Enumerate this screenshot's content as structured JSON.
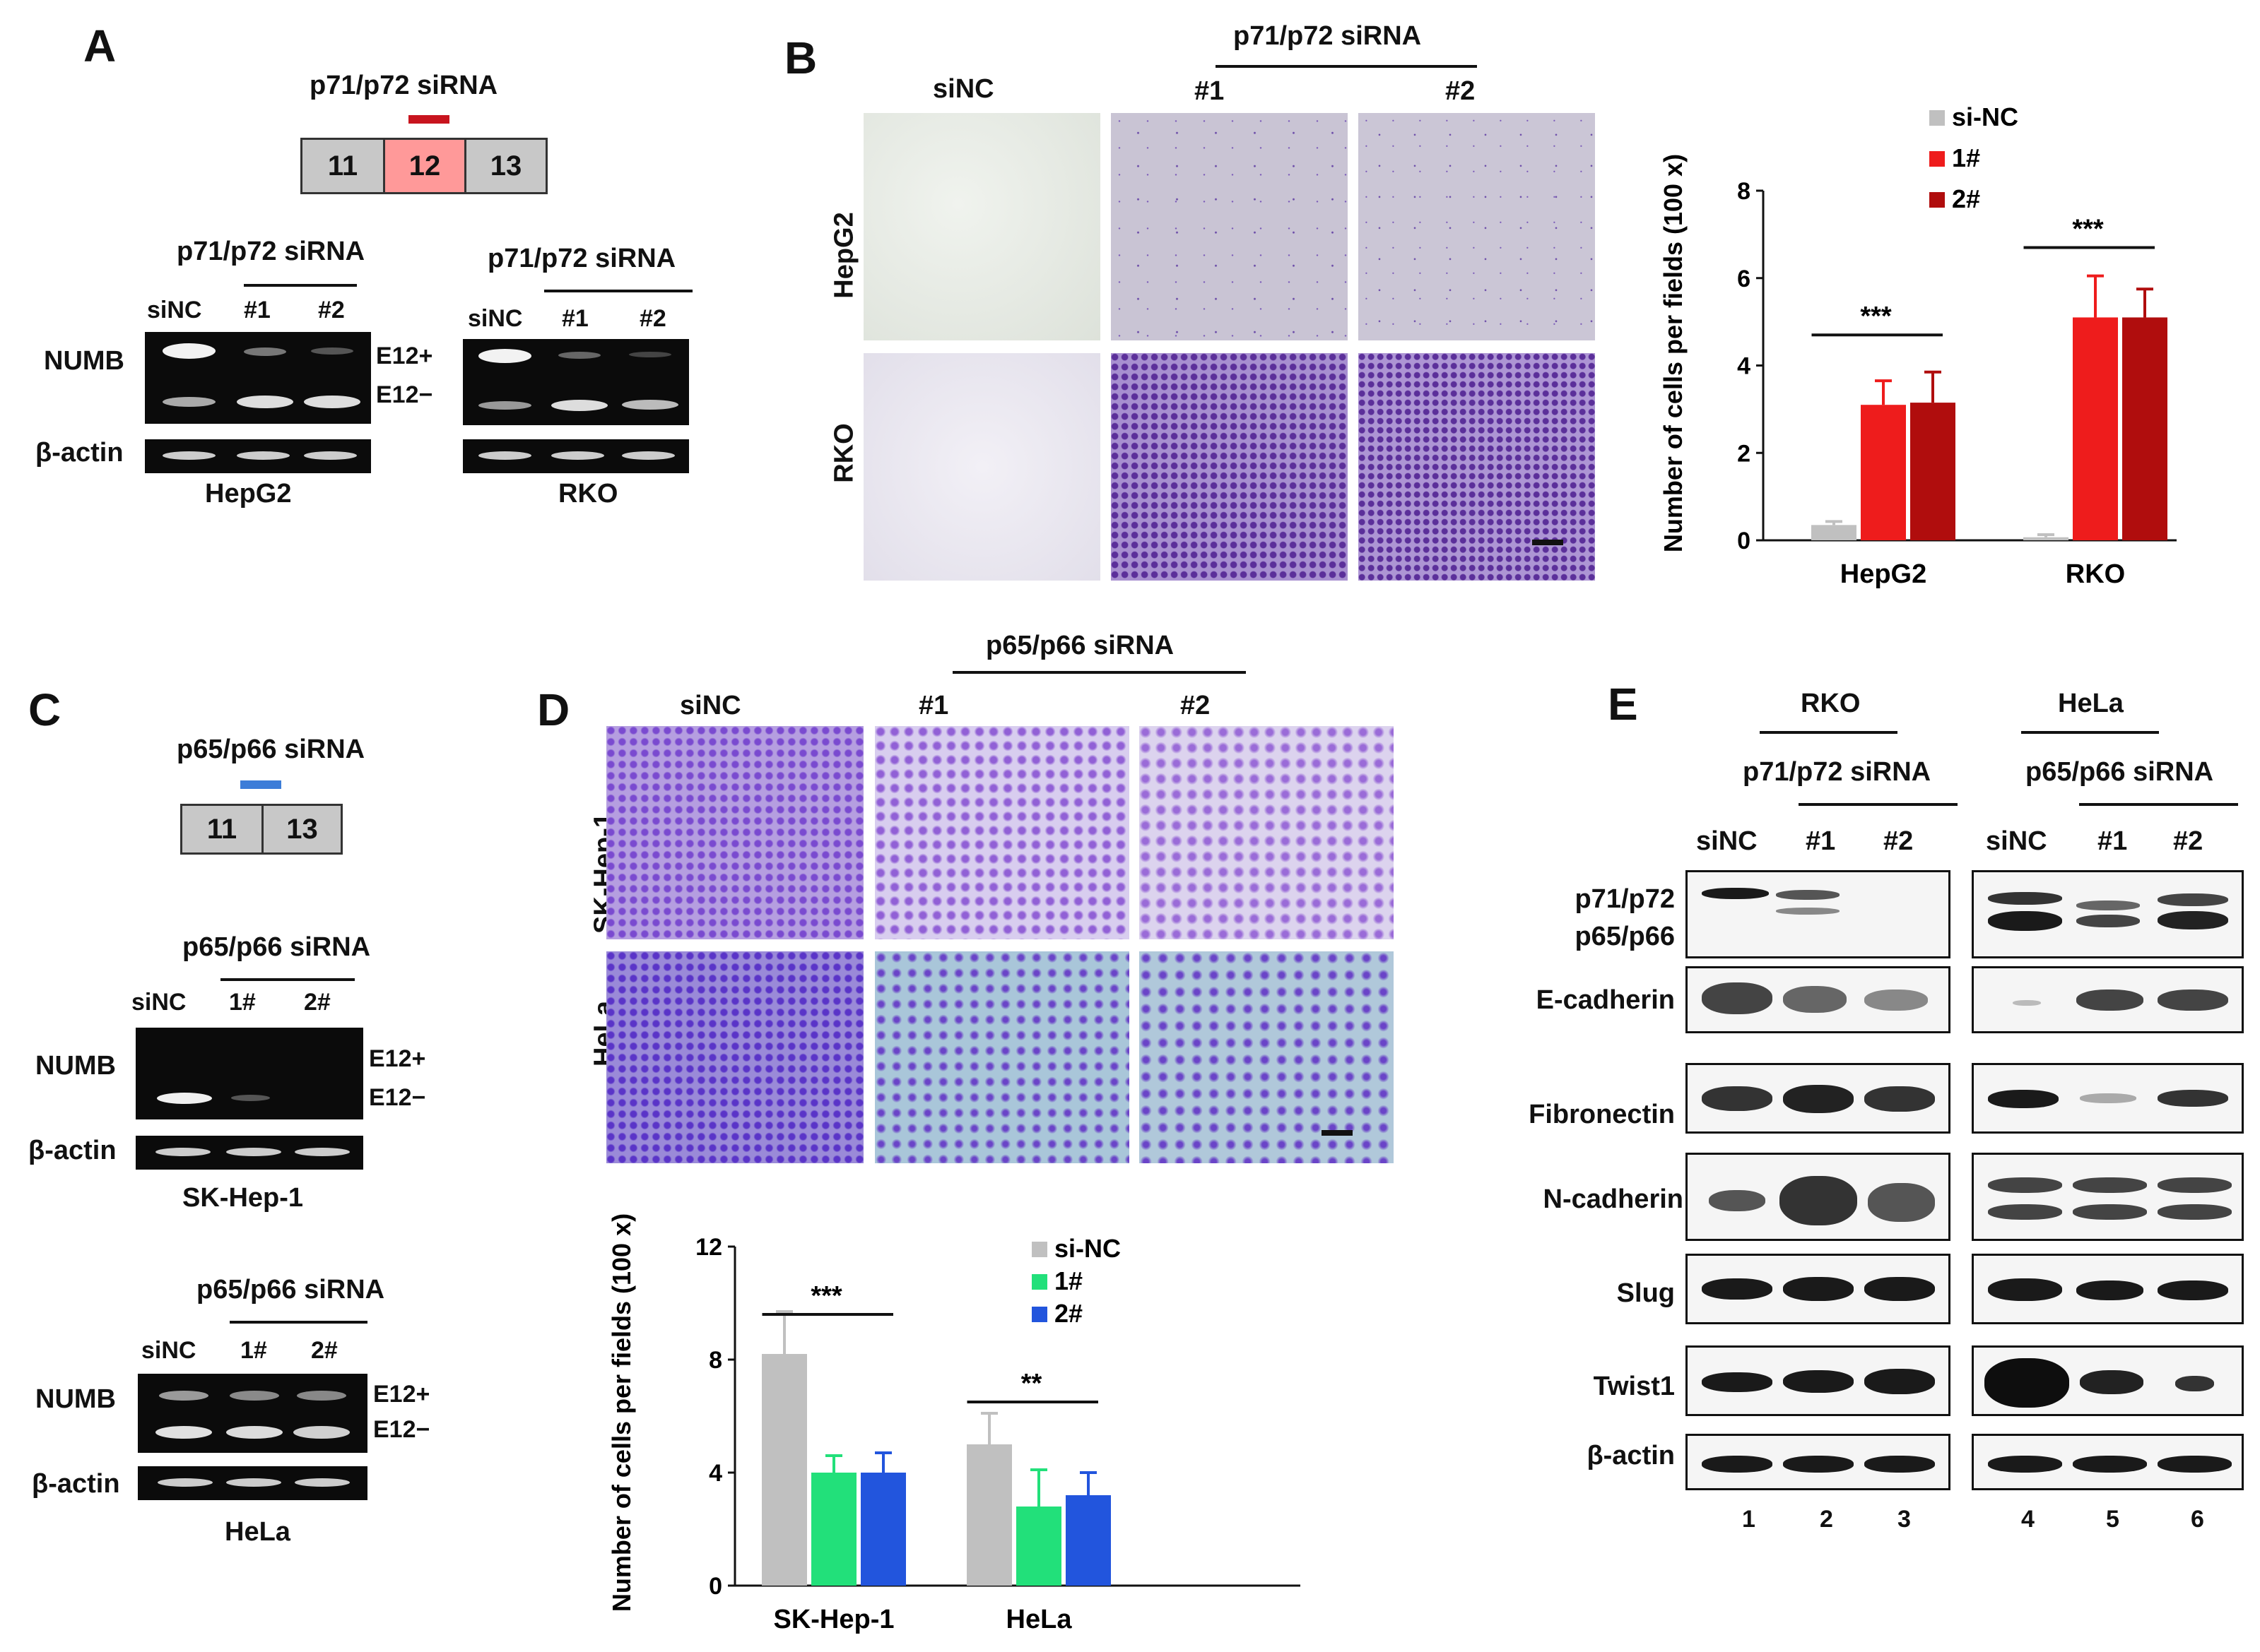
{
  "panels": {
    "A": "A",
    "B": "B",
    "C": "C",
    "D": "D",
    "E": "E"
  },
  "panelA": {
    "title": "p71/p72 siRNA",
    "exons": [
      "11",
      "12",
      "13"
    ],
    "gels": [
      {
        "header": "p71/p72 siRNA",
        "lanes": [
          "siNC",
          "#1",
          "#2"
        ],
        "cell": "HepG2"
      },
      {
        "header": "p71/p72 siRNA",
        "lanes": [
          "siNC",
          "#1",
          "#2"
        ],
        "cell": "RKO"
      }
    ],
    "row_numb": "NUMB",
    "row_actin": "β-actin",
    "e12plus": "E12+",
    "e12minus": "E12−"
  },
  "panelB": {
    "header": "p71/p72 siRNA",
    "cols": [
      "siNC",
      "#1",
      "#2"
    ],
    "rows": [
      "HepG2",
      "RKO"
    ]
  },
  "panelC": {
    "title": "p65/p66 siRNA",
    "exons": [
      "11",
      "13"
    ],
    "gels": [
      {
        "header": "p65/p66 siRNA",
        "lanes": [
          "siNC",
          "1#",
          "2#"
        ],
        "cell": "SK-Hep-1"
      },
      {
        "header": "p65/p66 siRNA",
        "lanes": [
          "siNC",
          "1#",
          "2#"
        ],
        "cell": "HeLa"
      }
    ],
    "row_numb": "NUMB",
    "row_actin": "β-actin",
    "e12plus": "E12+",
    "e12minus": "E12−"
  },
  "panelD": {
    "header": "p65/p66 siRNA",
    "cols": [
      "siNC",
      "#1",
      "#2"
    ],
    "rows": [
      "SK-Hep-1",
      "HeLa"
    ]
  },
  "panelE": {
    "groups": [
      {
        "cell": "RKO",
        "sirna": "p71/p72 siRNA",
        "lanes": [
          "siNC",
          "#1",
          "#2"
        ]
      },
      {
        "cell": "HeLa",
        "sirna": "p65/p66 siRNA",
        "lanes": [
          "siNC",
          "#1",
          "#2"
        ]
      }
    ],
    "rows": [
      "p71/p72",
      "p65/p66",
      "E-cadherin",
      "Fibronectin",
      "N-cadherin",
      "Slug",
      "Twist1",
      "β-actin"
    ],
    "lane_numbers": [
      "1",
      "2",
      "3",
      "4",
      "5",
      "6"
    ]
  },
  "chart_data": [
    {
      "type": "bar",
      "ylabel": "Number of cells per fields (100 x)",
      "categories": [
        "HepG2",
        "RKO"
      ],
      "ylim": [
        0,
        8
      ],
      "yticks": [
        "0",
        "2",
        "4",
        "6",
        "8"
      ],
      "series": [
        {
          "name": "si-NC",
          "color": "#c0c0c0",
          "values": [
            0.35,
            0.07
          ],
          "errors": [
            0.08,
            0.06
          ]
        },
        {
          "name": "1#",
          "color": "#ee1c1c",
          "values": [
            3.1,
            5.1
          ],
          "errors": [
            0.55,
            0.95
          ]
        },
        {
          "name": "2#",
          "color": "#b00d0d",
          "values": [
            3.15,
            5.1
          ],
          "errors": [
            0.7,
            0.65
          ]
        }
      ],
      "significance": [
        "***",
        "***"
      ]
    },
    {
      "type": "bar",
      "ylabel": "Number of cells per fields (100 x)",
      "categories": [
        "SK-Hep-1",
        "HeLa"
      ],
      "ylim": [
        0,
        12
      ],
      "yticks": [
        "0",
        "4",
        "8",
        "12"
      ],
      "series": [
        {
          "name": "si-NC",
          "color": "#c0c0c0",
          "values": [
            8.2,
            5.0
          ],
          "errors": [
            1.5,
            1.1
          ]
        },
        {
          "name": "1#",
          "color": "#22e07a",
          "values": [
            4.0,
            2.8
          ],
          "errors": [
            0.6,
            1.3
          ]
        },
        {
          "name": "2#",
          "color": "#2255dd",
          "values": [
            4.0,
            3.2
          ],
          "errors": [
            0.7,
            0.8
          ]
        }
      ],
      "significance": [
        "***",
        "**"
      ]
    }
  ]
}
